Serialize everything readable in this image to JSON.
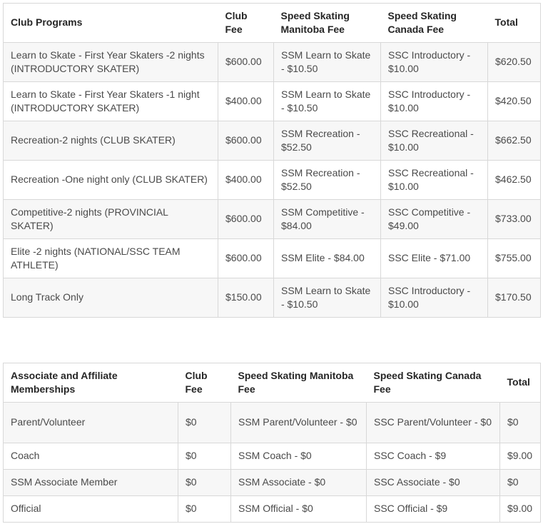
{
  "colors": {
    "background": "#ffffff",
    "border": "#d8d8d8",
    "row_stripe": "#f7f7f7",
    "header_text": "#262626",
    "cell_text": "#4a4a4a"
  },
  "club_programs_table": {
    "headers": {
      "program": "Club Programs",
      "club_fee": "Club Fee",
      "ssm_fee": "Speed Skating Manitoba Fee",
      "ssc_fee": "Speed Skating Canada Fee",
      "total": "Total"
    },
    "rows": [
      {
        "program": "Learn to Skate - First Year Skaters -2 nights (INTRODUCTORY SKATER)",
        "club_fee": "$600.00",
        "ssm_fee": "SSM Learn to Skate - $10.50",
        "ssc_fee": "SSC Introductory - $10.00",
        "total": "$620.50"
      },
      {
        "program": "Learn to Skate - First Year Skaters -1 night (INTRODUCTORY SKATER)",
        "club_fee": "$400.00",
        "ssm_fee": "SSM Learn to Skate - $10.50",
        "ssc_fee": "SSC Introductory - $10.00",
        "total": "$420.50"
      },
      {
        "program": "Recreation-2 nights (CLUB SKATER)",
        "club_fee": "$600.00",
        "ssm_fee": "SSM Recreation - $52.50",
        "ssc_fee": "SSC Recreational - $10.00",
        "total": "$662.50"
      },
      {
        "program": "Recreation -One night only (CLUB SKATER)",
        "club_fee": "$400.00",
        "ssm_fee": "SSM Recreation - $52.50",
        "ssc_fee": "SSC Recreational - $10.00",
        "total": "$462.50"
      },
      {
        "program": "Competitive-2 nights (PROVINCIAL SKATER)",
        "club_fee": "$600.00",
        "ssm_fee": "SSM Competitive - $84.00",
        "ssc_fee": "SSC Competitive - $49.00",
        "total": "$733.00"
      },
      {
        "program": "Elite -2 nights (NATIONAL/SSC TEAM ATHLETE)",
        "club_fee": "$600.00",
        "ssm_fee": "SSM Elite - $84.00",
        "ssc_fee": "SSC Elite - $71.00",
        "total": "$755.00"
      },
      {
        "program": "Long Track Only",
        "club_fee": "$150.00",
        "ssm_fee": "SSM Learn to Skate - $10.50",
        "ssc_fee": "SSC Introductory - $10.00",
        "total": "$170.50"
      }
    ]
  },
  "memberships_table": {
    "headers": {
      "membership": "Associate and Affiliate Memberships",
      "club_fee": "Club Fee",
      "ssm_fee": "Speed Skating Manitoba Fee",
      "ssc_fee": "Speed Skating Canada Fee",
      "total": "Total"
    },
    "rows": [
      {
        "membership": "Parent/Volunteer",
        "club_fee": "$0",
        "ssm_fee": "SSM Parent/Volunteer - $0",
        "ssc_fee": "SSC Parent/Volunteer - $0",
        "total": "$0"
      },
      {
        "membership": "Coach",
        "club_fee": "$0",
        "ssm_fee": "SSM Coach - $0",
        "ssc_fee": "SSC Coach - $9",
        "total": "$9.00"
      },
      {
        "membership": "SSM Associate Member",
        "club_fee": "$0",
        "ssm_fee": "SSM Associate - $0",
        "ssc_fee": "SSC Associate - $0",
        "total": "$0"
      },
      {
        "membership": "Official",
        "club_fee": "$0",
        "ssm_fee": "SSM Official - $0",
        "ssc_fee": "SSC Official - $9",
        "total": "$9.00"
      }
    ]
  }
}
